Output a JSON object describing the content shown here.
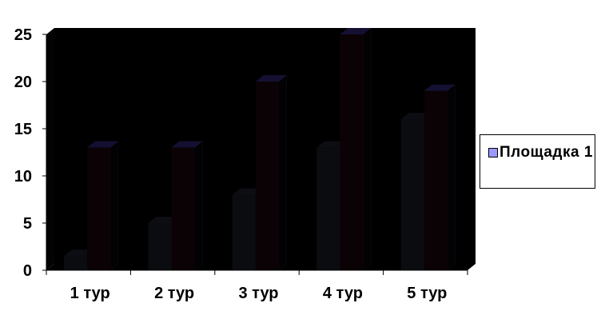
{
  "chart_data": {
    "type": "bar",
    "style": "3d-clustered-column",
    "title": "",
    "xlabel": "",
    "ylabel": "",
    "categories": [
      "1 тур",
      "2 тур",
      "3 тур",
      "4 тур",
      "5 тур"
    ],
    "series": [
      {
        "name": "Площадка 1",
        "values": [
          1.5,
          5,
          8,
          13,
          16
        ],
        "color": "#0b0c10",
        "legend_color": "#9999ff"
      },
      {
        "values": [
          13,
          13,
          20,
          25,
          19
        ],
        "color": "#0a0205"
      }
    ],
    "ylim": [
      0,
      25
    ],
    "yticks": [
      0,
      5,
      10,
      15,
      20,
      25
    ],
    "ytick_labels": [
      "0",
      "5",
      "10",
      "15",
      "20",
      "25"
    ],
    "grid": false,
    "background_color": "#000000",
    "legend": {
      "position": "right",
      "entries": [
        "Площадка 1"
      ]
    }
  }
}
